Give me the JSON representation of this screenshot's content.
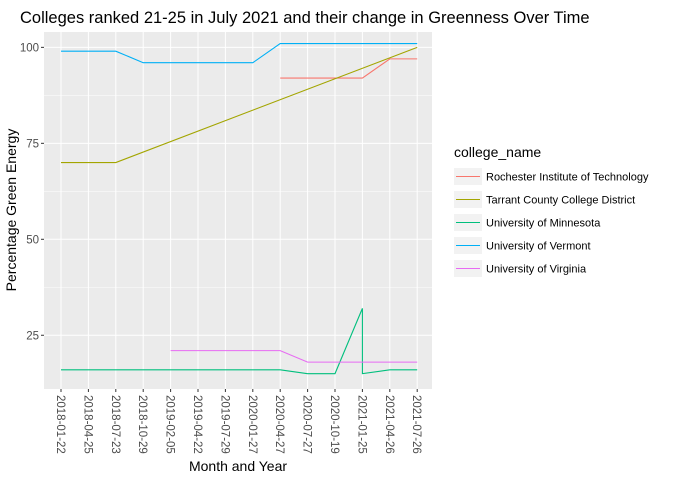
{
  "chart_data": {
    "type": "line",
    "title": "Colleges ranked 21-25 in July 2021 and their change in Greenness Over Time",
    "xlabel": "Month and Year",
    "ylabel": "Percentage Green Energy",
    "x_tick_labels": [
      "2018-01-22",
      "2018-04-25",
      "2018-07-23",
      "2018-10-29",
      "2019-02-05",
      "2019-04-22",
      "2019-07-29",
      "2020-01-27",
      "2020-04-27",
      "2020-07-27",
      "2020-10-19",
      "2021-01-25",
      "2021-04-26",
      "2021-07-26"
    ],
    "y_ticks": [
      25,
      50,
      75,
      100
    ],
    "ylim": [
      11,
      104
    ],
    "legend_title": "college_name",
    "legend_position": "right",
    "grid": true,
    "panel_background": "#ebebeb",
    "series": [
      {
        "name": "Rochester Institute of Technology",
        "color": "#F8766D",
        "points": [
          [
            "2020-04-27",
            92
          ],
          [
            "2021-01-25",
            92
          ],
          [
            "2021-04-26",
            97
          ],
          [
            "2021-07-26",
            97
          ]
        ]
      },
      {
        "name": "Tarrant County College District",
        "color": "#A3A500",
        "points": [
          [
            "2018-01-22",
            70
          ],
          [
            "2018-07-23",
            70
          ],
          [
            "2021-07-26",
            100
          ]
        ]
      },
      {
        "name": "University of Minnesota",
        "color": "#00BF7D",
        "points": [
          [
            "2018-01-22",
            16
          ],
          [
            "2020-04-27",
            16
          ],
          [
            "2020-07-27",
            15
          ],
          [
            "2020-10-19",
            15
          ],
          [
            "2021-01-25",
            32
          ],
          [
            "2021-01-25",
            15
          ],
          [
            "2021-04-26",
            16
          ],
          [
            "2021-07-26",
            16
          ]
        ]
      },
      {
        "name": "University of Vermont",
        "color": "#00B0F6",
        "points": [
          [
            "2018-01-22",
            99
          ],
          [
            "2018-07-23",
            99
          ],
          [
            "2018-10-29",
            96
          ],
          [
            "2020-01-27",
            96
          ],
          [
            "2020-04-27",
            101
          ],
          [
            "2021-07-26",
            101
          ]
        ]
      },
      {
        "name": "University of Virginia",
        "color": "#E76BF3",
        "points": [
          [
            "2019-02-05",
            21
          ],
          [
            "2020-04-27",
            21
          ],
          [
            "2020-07-27",
            18
          ],
          [
            "2021-07-26",
            18
          ]
        ]
      }
    ]
  }
}
